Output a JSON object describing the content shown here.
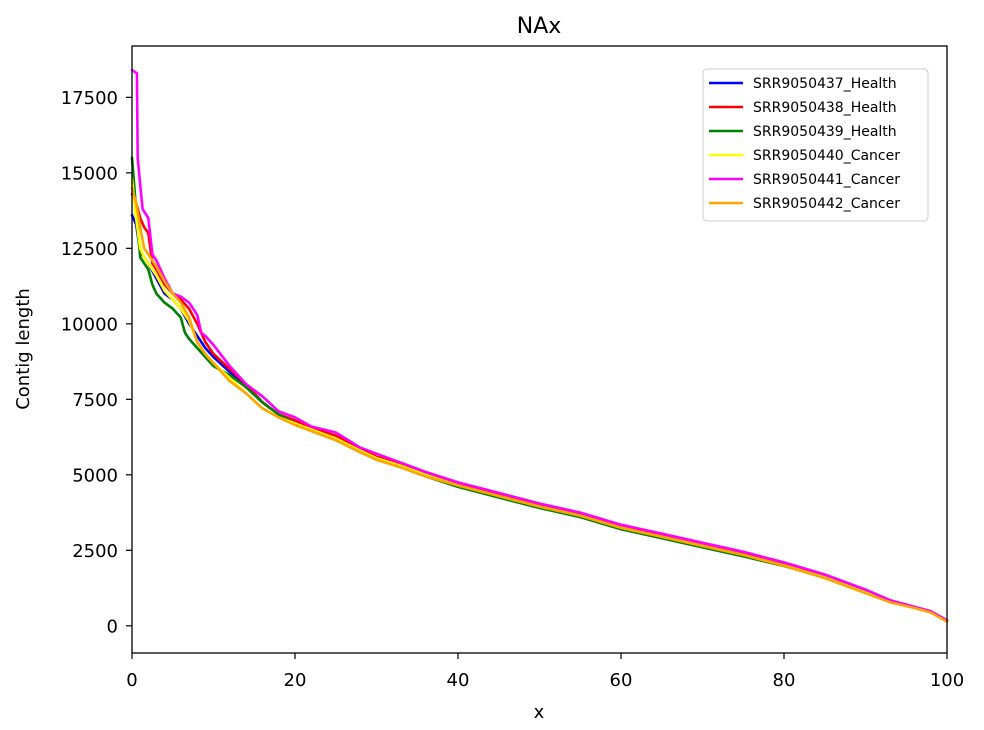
{
  "chart_data": {
    "type": "line",
    "title": "NAx",
    "xlabel": "x",
    "ylabel": "Contig length",
    "xlim": [
      0,
      100
    ],
    "ylim": [
      -900,
      19200
    ],
    "x_ticks": [
      0,
      20,
      40,
      60,
      80,
      100
    ],
    "y_ticks": [
      0,
      2500,
      5000,
      7500,
      10000,
      12500,
      15000,
      17500
    ],
    "grid": false,
    "legend_position": "top-right",
    "series": [
      {
        "name": "SRR9050437_Health",
        "color": "#0000ff",
        "points": [
          [
            0,
            13600
          ],
          [
            0.5,
            13300
          ],
          [
            1,
            12400
          ],
          [
            2,
            12000
          ],
          [
            3,
            11500
          ],
          [
            4,
            11000
          ],
          [
            5,
            10800
          ],
          [
            6,
            10500
          ],
          [
            7,
            10000
          ],
          [
            8,
            9600
          ],
          [
            9,
            9200
          ],
          [
            10,
            8900
          ],
          [
            12,
            8400
          ],
          [
            14,
            7900
          ],
          [
            16,
            7400
          ],
          [
            18,
            7000
          ],
          [
            20,
            6700
          ],
          [
            22,
            6500
          ],
          [
            25,
            6200
          ],
          [
            28,
            5800
          ],
          [
            30,
            5550
          ],
          [
            33,
            5300
          ],
          [
            36,
            5000
          ],
          [
            40,
            4650
          ],
          [
            45,
            4300
          ],
          [
            50,
            3950
          ],
          [
            55,
            3650
          ],
          [
            60,
            3250
          ],
          [
            65,
            2950
          ],
          [
            70,
            2650
          ],
          [
            75,
            2350
          ],
          [
            80,
            2000
          ],
          [
            85,
            1600
          ],
          [
            90,
            1100
          ],
          [
            93,
            800
          ],
          [
            96,
            600
          ],
          [
            98,
            450
          ],
          [
            100,
            150
          ]
        ]
      },
      {
        "name": "SRR9050438_Health",
        "color": "#ff0000",
        "points": [
          [
            0,
            14300
          ],
          [
            0.5,
            14000
          ],
          [
            1,
            13500
          ],
          [
            1.5,
            13200
          ],
          [
            2,
            13000
          ],
          [
            2.5,
            12000
          ],
          [
            3,
            11800
          ],
          [
            4,
            11300
          ],
          [
            5,
            11000
          ],
          [
            6,
            10800
          ],
          [
            7,
            10500
          ],
          [
            8,
            10000
          ],
          [
            9,
            9400
          ],
          [
            10,
            9000
          ],
          [
            12,
            8500
          ],
          [
            14,
            8000
          ],
          [
            16,
            7400
          ],
          [
            18,
            7000
          ],
          [
            20,
            6800
          ],
          [
            22,
            6550
          ],
          [
            25,
            6300
          ],
          [
            28,
            5850
          ],
          [
            30,
            5600
          ],
          [
            33,
            5350
          ],
          [
            36,
            5050
          ],
          [
            40,
            4700
          ],
          [
            45,
            4350
          ],
          [
            50,
            4000
          ],
          [
            55,
            3700
          ],
          [
            60,
            3300
          ],
          [
            65,
            3000
          ],
          [
            70,
            2700
          ],
          [
            75,
            2400
          ],
          [
            80,
            2050
          ],
          [
            85,
            1650
          ],
          [
            90,
            1150
          ],
          [
            93,
            850
          ],
          [
            96,
            620
          ],
          [
            98,
            480
          ],
          [
            100,
            180
          ]
        ]
      },
      {
        "name": "SRR9050439_Health",
        "color": "#008000",
        "points": [
          [
            0,
            15500
          ],
          [
            0.5,
            13800
          ],
          [
            1,
            12200
          ],
          [
            2,
            11800
          ],
          [
            2.5,
            11300
          ],
          [
            3,
            11000
          ],
          [
            4,
            10700
          ],
          [
            5,
            10500
          ],
          [
            6,
            10200
          ],
          [
            6.5,
            9700
          ],
          [
            7,
            9500
          ],
          [
            8,
            9200
          ],
          [
            9,
            8900
          ],
          [
            10,
            8600
          ],
          [
            12,
            8300
          ],
          [
            14,
            7900
          ],
          [
            16,
            7400
          ],
          [
            18,
            7000
          ],
          [
            20,
            6700
          ],
          [
            22,
            6450
          ],
          [
            25,
            6150
          ],
          [
            28,
            5750
          ],
          [
            30,
            5500
          ],
          [
            33,
            5250
          ],
          [
            36,
            4950
          ],
          [
            40,
            4600
          ],
          [
            45,
            4250
          ],
          [
            50,
            3900
          ],
          [
            55,
            3600
          ],
          [
            60,
            3200
          ],
          [
            65,
            2900
          ],
          [
            70,
            2600
          ],
          [
            75,
            2300
          ],
          [
            80,
            1980
          ],
          [
            85,
            1600
          ],
          [
            90,
            1100
          ],
          [
            93,
            800
          ],
          [
            96,
            600
          ],
          [
            98,
            450
          ],
          [
            100,
            150
          ]
        ]
      },
      {
        "name": "SRR9050440_Cancer",
        "color": "#ffff00",
        "points": [
          [
            0,
            14800
          ],
          [
            0.5,
            13500
          ],
          [
            1,
            12500
          ],
          [
            1.5,
            12200
          ],
          [
            2,
            12000
          ],
          [
            3,
            11600
          ],
          [
            4,
            11100
          ],
          [
            5,
            10800
          ],
          [
            6,
            10500
          ],
          [
            7,
            10100
          ],
          [
            8,
            9400
          ],
          [
            9,
            9000
          ],
          [
            10,
            8700
          ],
          [
            12,
            8200
          ],
          [
            14,
            7700
          ],
          [
            16,
            7200
          ],
          [
            18,
            6900
          ],
          [
            20,
            6700
          ],
          [
            22,
            6500
          ],
          [
            25,
            6200
          ],
          [
            28,
            5800
          ],
          [
            30,
            5550
          ],
          [
            33,
            5300
          ],
          [
            36,
            5000
          ],
          [
            40,
            4650
          ],
          [
            45,
            4300
          ],
          [
            50,
            3950
          ],
          [
            55,
            3650
          ],
          [
            60,
            3250
          ],
          [
            65,
            2950
          ],
          [
            70,
            2650
          ],
          [
            75,
            2350
          ],
          [
            80,
            2000
          ],
          [
            85,
            1600
          ],
          [
            90,
            1100
          ],
          [
            93,
            800
          ],
          [
            96,
            600
          ],
          [
            98,
            450
          ],
          [
            100,
            150
          ]
        ]
      },
      {
        "name": "SRR9050441_Cancer",
        "color": "#ff00ff",
        "points": [
          [
            0,
            18400
          ],
          [
            0.6,
            18300
          ],
          [
            0.7,
            15500
          ],
          [
            1,
            14600
          ],
          [
            1.3,
            13800
          ],
          [
            2,
            13500
          ],
          [
            2.5,
            12300
          ],
          [
            3,
            12100
          ],
          [
            4,
            11500
          ],
          [
            5,
            11000
          ],
          [
            6,
            10900
          ],
          [
            7,
            10700
          ],
          [
            8,
            10300
          ],
          [
            8.5,
            9700
          ],
          [
            9,
            9600
          ],
          [
            10,
            9300
          ],
          [
            12,
            8600
          ],
          [
            14,
            8000
          ],
          [
            16,
            7600
          ],
          [
            18,
            7100
          ],
          [
            20,
            6900
          ],
          [
            22,
            6600
          ],
          [
            25,
            6400
          ],
          [
            28,
            5900
          ],
          [
            30,
            5700
          ],
          [
            33,
            5400
          ],
          [
            36,
            5100
          ],
          [
            40,
            4750
          ],
          [
            45,
            4400
          ],
          [
            50,
            4050
          ],
          [
            55,
            3750
          ],
          [
            60,
            3350
          ],
          [
            65,
            3050
          ],
          [
            70,
            2750
          ],
          [
            75,
            2450
          ],
          [
            80,
            2100
          ],
          [
            85,
            1700
          ],
          [
            90,
            1200
          ],
          [
            93,
            850
          ],
          [
            96,
            630
          ],
          [
            98,
            480
          ],
          [
            100,
            180
          ]
        ]
      },
      {
        "name": "SRR9050442_Cancer",
        "color": "#ffa500",
        "points": [
          [
            0,
            14500
          ],
          [
            0.5,
            14000
          ],
          [
            1,
            13200
          ],
          [
            1.5,
            12500
          ],
          [
            2,
            12300
          ],
          [
            3,
            11900
          ],
          [
            4,
            11400
          ],
          [
            5,
            11000
          ],
          [
            6,
            10700
          ],
          [
            7,
            10200
          ],
          [
            8,
            9400
          ],
          [
            9,
            9000
          ],
          [
            10,
            8700
          ],
          [
            12,
            8100
          ],
          [
            14,
            7700
          ],
          [
            16,
            7200
          ],
          [
            18,
            6900
          ],
          [
            20,
            6650
          ],
          [
            22,
            6450
          ],
          [
            25,
            6150
          ],
          [
            28,
            5750
          ],
          [
            30,
            5500
          ],
          [
            33,
            5250
          ],
          [
            36,
            4950
          ],
          [
            40,
            4650
          ],
          [
            45,
            4300
          ],
          [
            50,
            3950
          ],
          [
            55,
            3650
          ],
          [
            60,
            3250
          ],
          [
            65,
            2950
          ],
          [
            70,
            2650
          ],
          [
            75,
            2350
          ],
          [
            80,
            1990
          ],
          [
            85,
            1580
          ],
          [
            90,
            1080
          ],
          [
            93,
            780
          ],
          [
            96,
            590
          ],
          [
            98,
            440
          ],
          [
            100,
            140
          ]
        ]
      }
    ]
  }
}
